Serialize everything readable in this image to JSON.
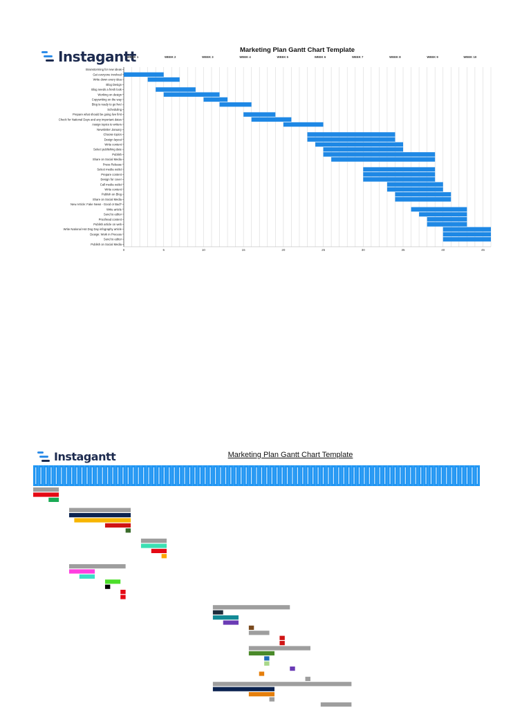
{
  "brand": {
    "name": "Instagantt",
    "mark_colors": [
      "#2d8ce8",
      "#1d2b4f"
    ]
  },
  "chart_data": [
    {
      "type": "bar",
      "subtype": "gantt",
      "title": "Marketing Plan Gantt Chart Template",
      "xlabel": "",
      "ylabel": "",
      "xlim": [
        0,
        46
      ],
      "xticks": [
        0,
        5,
        10,
        15,
        20,
        25,
        30,
        35,
        40,
        45
      ],
      "grid": true,
      "legend": "none",
      "bar_color": "#1e88e5",
      "weeks": [
        "WEEK 1",
        "WEEK 2",
        "WEEK 3",
        "WEEK 4",
        "WEEK 5",
        "WEEK 6",
        "WEEK 7",
        "WEEK 8",
        "WEEK 9",
        "WEEK 10"
      ],
      "tasks": [
        {
          "name": "Brainstorming for new ideas",
          "start": 0,
          "end": 0
        },
        {
          "name": "Get everyone involved",
          "start": 0,
          "end": 5
        },
        {
          "name": "Write down every idea",
          "start": 3,
          "end": 7
        },
        {
          "name": "Blog Design",
          "start": 0,
          "end": 0
        },
        {
          "name": "Blog needs a fresh look",
          "start": 4,
          "end": 9
        },
        {
          "name": "Working on design",
          "start": 5,
          "end": 12
        },
        {
          "name": "Copywriting on the way",
          "start": 10,
          "end": 13
        },
        {
          "name": "Blog is ready to go live!",
          "start": 12,
          "end": 16
        },
        {
          "name": "Scheduling",
          "start": 0,
          "end": 0
        },
        {
          "name": "Prepare what should be going live first",
          "start": 15,
          "end": 19
        },
        {
          "name": "Check for National Days and any important dates",
          "start": 16,
          "end": 21
        },
        {
          "name": "Assign topics to writers",
          "start": 20,
          "end": 25
        },
        {
          "name": "Newsletter January",
          "start": 0,
          "end": 0
        },
        {
          "name": "Choose topics",
          "start": 23,
          "end": 34
        },
        {
          "name": "Design layout",
          "start": 23,
          "end": 34
        },
        {
          "name": "Write content",
          "start": 24,
          "end": 35
        },
        {
          "name": "Select publishing date",
          "start": 25,
          "end": 35
        },
        {
          "name": "Publish",
          "start": 25,
          "end": 39
        },
        {
          "name": "Share on Social Media",
          "start": 26,
          "end": 39
        },
        {
          "name": "Press Release",
          "start": 0,
          "end": 0
        },
        {
          "name": "Select media outlet",
          "start": 30,
          "end": 39
        },
        {
          "name": "Prepare content",
          "start": 30,
          "end": 39
        },
        {
          "name": "Design for cover",
          "start": 30,
          "end": 39
        },
        {
          "name": "Call media outlet",
          "start": 33,
          "end": 40
        },
        {
          "name": "Write content",
          "start": 33,
          "end": 40
        },
        {
          "name": "Publish on Blog",
          "start": 34,
          "end": 41
        },
        {
          "name": "Share on Social Media",
          "start": 34,
          "end": 41
        },
        {
          "name": "New Article: Fake News - Good or Bad?",
          "start": 0,
          "end": 0
        },
        {
          "name": "Write article",
          "start": 36,
          "end": 43
        },
        {
          "name": "Send to editor",
          "start": 37,
          "end": 43
        },
        {
          "name": "Proofread content",
          "start": 38,
          "end": 43
        },
        {
          "name": "Publish article on web",
          "start": 38,
          "end": 43
        },
        {
          "name": "Write National Hot Dog Day infography article",
          "start": 40,
          "end": 46
        },
        {
          "name": "Design: Work in Process",
          "start": 40,
          "end": 46
        },
        {
          "name": "Send to editor",
          "start": 40,
          "end": 46
        },
        {
          "name": "Publish on Social Media",
          "start": 0,
          "end": 0
        }
      ]
    },
    {
      "type": "bar",
      "subtype": "gantt",
      "title": "Marketing Plan Gantt Chart Template",
      "xlabel": "",
      "ylabel": "",
      "xlim": [
        0,
        87
      ],
      "grid": false,
      "legend": "none",
      "header_color": "#2196f3",
      "date_columns": 87,
      "tasks": [
        {
          "row": 0,
          "start": 0,
          "end": 5,
          "color": "#9e9e9e"
        },
        {
          "row": 1,
          "start": 0,
          "end": 5,
          "color": "#e50914"
        },
        {
          "row": 2,
          "start": 3,
          "end": 5,
          "color": "#1aaa55"
        },
        {
          "row": 4,
          "start": 7,
          "end": 19,
          "color": "#9e9e9e"
        },
        {
          "row": 5,
          "start": 7,
          "end": 19,
          "color": "#0b2350"
        },
        {
          "row": 6,
          "start": 8,
          "end": 19,
          "color": "#f7b500"
        },
        {
          "row": 7,
          "start": 14,
          "end": 19,
          "color": "#d01414"
        },
        {
          "row": 8,
          "start": 18,
          "end": 19,
          "color": "#3a6b2a"
        },
        {
          "row": 10,
          "start": 21,
          "end": 26,
          "color": "#9e9e9e"
        },
        {
          "row": 11,
          "start": 21,
          "end": 26,
          "color": "#3be0b3"
        },
        {
          "row": 12,
          "start": 23,
          "end": 26,
          "color": "#e50914"
        },
        {
          "row": 13,
          "start": 25,
          "end": 26,
          "color": "#ffa500"
        },
        {
          "row": 15,
          "start": 7,
          "end": 18,
          "color": "#9e9e9e"
        },
        {
          "row": 16,
          "start": 7,
          "end": 12,
          "color": "#ff3fe0"
        },
        {
          "row": 17,
          "start": 9,
          "end": 12,
          "color": "#3be0c6"
        },
        {
          "row": 18,
          "start": 14,
          "end": 17,
          "color": "#4cde2a"
        },
        {
          "row": 19,
          "start": 14,
          "end": 15,
          "color": "#000000"
        },
        {
          "row": 20,
          "start": 17,
          "end": 18,
          "color": "#e50914"
        },
        {
          "row": 21,
          "start": 17,
          "end": 18,
          "color": "#e50914"
        },
        {
          "row": 23,
          "start": 35,
          "end": 50,
          "color": "#9e9e9e"
        },
        {
          "row": 24,
          "start": 35,
          "end": 37,
          "color": "#1f2d3d"
        },
        {
          "row": 25,
          "start": 35,
          "end": 40,
          "color": "#138a96"
        },
        {
          "row": 26,
          "start": 37,
          "end": 40,
          "color": "#6a3bb5"
        },
        {
          "row": 27,
          "start": 42,
          "end": 43,
          "color": "#7a4a1e"
        },
        {
          "row": 28,
          "start": 42,
          "end": 46,
          "color": "#9e9e9e"
        },
        {
          "row": 29,
          "start": 48,
          "end": 49,
          "color": "#d01414"
        },
        {
          "row": 30,
          "start": 48,
          "end": 49,
          "color": "#d01414"
        },
        {
          "row": 31,
          "start": 42,
          "end": 54,
          "color": "#9e9e9e"
        },
        {
          "row": 32,
          "start": 42,
          "end": 47,
          "color": "#4a8a2a"
        },
        {
          "row": 33,
          "start": 45,
          "end": 46,
          "color": "#1e6bb8"
        },
        {
          "row": 34,
          "start": 45,
          "end": 46,
          "color": "#a8d88a"
        },
        {
          "row": 35,
          "start": 50,
          "end": 51,
          "color": "#6a3bb5"
        },
        {
          "row": 36,
          "start": 44,
          "end": 45,
          "color": "#e57f0c"
        },
        {
          "row": 37,
          "start": 53,
          "end": 54,
          "color": "#9e9e9e"
        },
        {
          "row": 38,
          "start": 35,
          "end": 62,
          "color": "#9e9e9e"
        },
        {
          "row": 39,
          "start": 35,
          "end": 47,
          "color": "#0b2350"
        },
        {
          "row": 40,
          "start": 42,
          "end": 47,
          "color": "#e57f0c"
        },
        {
          "row": 41,
          "start": 46,
          "end": 47,
          "color": "#9e9e9e"
        },
        {
          "row": 42,
          "start": 56,
          "end": 62,
          "color": "#9e9e9e"
        },
        {
          "row": 43,
          "start": 56,
          "end": 57,
          "color": "#d01414"
        },
        {
          "row": 44,
          "start": 49,
          "end": 64,
          "color": "#9e9e9e"
        },
        {
          "row": 45,
          "start": 49,
          "end": 52,
          "color": "#6a3bb5"
        },
        {
          "row": 46,
          "start": 51,
          "end": 58,
          "color": "#f7b500"
        }
      ]
    }
  ]
}
